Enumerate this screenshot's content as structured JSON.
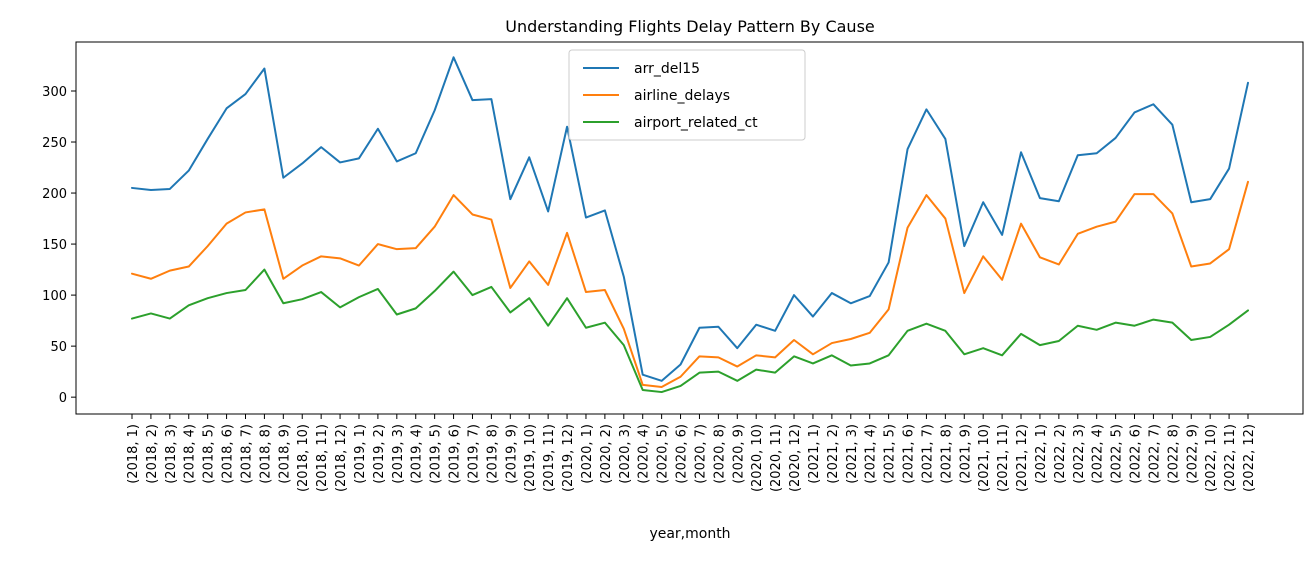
{
  "chart_data": {
    "type": "line",
    "title": "Understanding Flights Delay Pattern By Cause",
    "xlabel": "year,month",
    "ylabel": "",
    "ylim": [
      -16.5,
      348
    ],
    "yticks": [
      0,
      50,
      100,
      150,
      200,
      250,
      300
    ],
    "grid": false,
    "legend_position": "top-center",
    "categories": [
      "(2018, 1)",
      "(2018, 2)",
      "(2018, 3)",
      "(2018, 4)",
      "(2018, 5)",
      "(2018, 6)",
      "(2018, 7)",
      "(2018, 8)",
      "(2018, 9)",
      "(2018, 10)",
      "(2018, 11)",
      "(2018, 12)",
      "(2019, 1)",
      "(2019, 2)",
      "(2019, 3)",
      "(2019, 4)",
      "(2019, 5)",
      "(2019, 6)",
      "(2019, 7)",
      "(2019, 8)",
      "(2019, 9)",
      "(2019, 10)",
      "(2019, 11)",
      "(2019, 12)",
      "(2020, 1)",
      "(2020, 2)",
      "(2020, 3)",
      "(2020, 4)",
      "(2020, 5)",
      "(2020, 6)",
      "(2020, 7)",
      "(2020, 8)",
      "(2020, 9)",
      "(2020, 10)",
      "(2020, 11)",
      "(2020, 12)",
      "(2021, 1)",
      "(2021, 2)",
      "(2021, 3)",
      "(2021, 4)",
      "(2021, 5)",
      "(2021, 6)",
      "(2021, 7)",
      "(2021, 8)",
      "(2021, 9)",
      "(2021, 10)",
      "(2021, 11)",
      "(2021, 12)",
      "(2022, 1)",
      "(2022, 2)",
      "(2022, 3)",
      "(2022, 4)",
      "(2022, 5)",
      "(2022, 6)",
      "(2022, 7)",
      "(2022, 8)",
      "(2022, 9)",
      "(2022, 10)",
      "(2022, 11)",
      "(2022, 12)"
    ],
    "series": [
      {
        "name": "arr_del15",
        "color": "#1f77b4",
        "values": [
          205,
          203,
          204,
          222,
          253,
          283,
          297,
          322,
          215,
          229,
          245,
          230,
          234,
          263,
          231,
          239,
          281,
          333,
          291,
          292,
          194,
          235,
          182,
          265,
          176,
          183,
          118,
          22,
          16,
          32,
          68,
          69,
          48,
          71,
          65,
          100,
          79,
          102,
          92,
          99,
          132,
          243,
          282,
          253,
          148,
          191,
          159,
          240,
          195,
          192,
          237,
          239,
          254,
          279,
          287,
          267,
          191,
          194,
          224,
          308
        ]
      },
      {
        "name": "airline_delays",
        "color": "#ff7f0e",
        "values": [
          121,
          116,
          124,
          128,
          148,
          170,
          181,
          184,
          116,
          129,
          138,
          136,
          129,
          150,
          145,
          146,
          167,
          198,
          179,
          174,
          107,
          133,
          110,
          161,
          103,
          105,
          67,
          12,
          10,
          20,
          40,
          39,
          30,
          41,
          39,
          56,
          42,
          53,
          57,
          63,
          86,
          166,
          198,
          175,
          102,
          138,
          115,
          170,
          137,
          130,
          160,
          167,
          172,
          199,
          199,
          180,
          128,
          131,
          145,
          211
        ]
      },
      {
        "name": "airport_related_ct",
        "color": "#2ca02c",
        "values": [
          77,
          82,
          77,
          90,
          97,
          102,
          105,
          125,
          92,
          96,
          103,
          88,
          98,
          106,
          81,
          87,
          104,
          123,
          100,
          108,
          83,
          97,
          70,
          97,
          68,
          73,
          51,
          7,
          5,
          11,
          24,
          25,
          16,
          27,
          24,
          40,
          33,
          41,
          31,
          33,
          41,
          65,
          72,
          65,
          42,
          48,
          41,
          62,
          51,
          55,
          70,
          66,
          73,
          70,
          76,
          73,
          56,
          59,
          71,
          85
        ]
      }
    ]
  }
}
